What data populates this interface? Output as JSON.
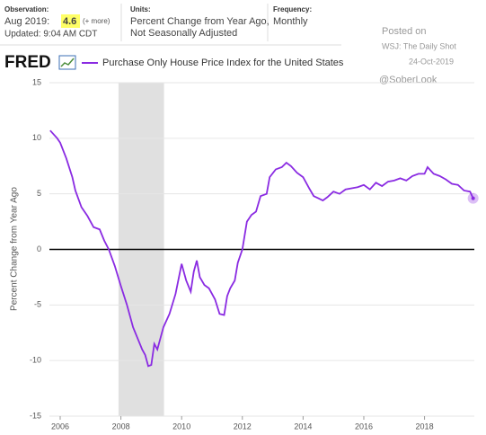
{
  "header": {
    "observation_label": "Observation:",
    "observation_date": "Aug 2019:",
    "observation_value": "4.6",
    "observation_more": "(+ more)",
    "updated": "Updated: 9:04 AM CDT",
    "units_label": "Units:",
    "units_line1": "Percent Change from Year Ago,",
    "units_line2": "Not Seasonally Adjusted",
    "frequency_label": "Frequency:",
    "frequency": "Monthly",
    "logo": "FRED"
  },
  "watermark": {
    "posted": "Posted on",
    "source": "WSJ: The Daily Shot",
    "date": "24-Oct-2019",
    "handle": "@SoberLook"
  },
  "chart_data": {
    "type": "line",
    "ylabel": "Percent Change from Year Ago",
    "x": [
      2005.67,
      2005.9,
      2006.0,
      2006.2,
      2006.4,
      2006.5,
      2006.7,
      2006.9,
      2007.1,
      2007.3,
      2007.45,
      2007.6,
      2007.8,
      2008.0,
      2008.2,
      2008.4,
      2008.55,
      2008.7,
      2008.8,
      2008.9,
      2009.0,
      2009.1,
      2009.2,
      2009.3,
      2009.4,
      2009.6,
      2009.8,
      2010.0,
      2010.15,
      2010.3,
      2010.4,
      2010.5,
      2010.6,
      2010.75,
      2010.9,
      2011.0,
      2011.1,
      2011.25,
      2011.4,
      2011.5,
      2011.6,
      2011.75,
      2011.85,
      2012.0,
      2012.15,
      2012.3,
      2012.45,
      2012.6,
      2012.8,
      2012.9,
      2013.1,
      2013.3,
      2013.45,
      2013.6,
      2013.8,
      2014.0,
      2014.2,
      2014.35,
      2014.5,
      2014.65,
      2014.8,
      2015.0,
      2015.2,
      2015.4,
      2015.6,
      2015.8,
      2016.0,
      2016.2,
      2016.4,
      2016.6,
      2016.8,
      2017.0,
      2017.2,
      2017.4,
      2017.6,
      2017.8,
      2018.0,
      2018.1,
      2018.3,
      2018.5,
      2018.7,
      2018.9,
      2019.1,
      2019.3,
      2019.5,
      2019.6
    ],
    "series": [
      {
        "name": "Purchase Only House Price Index for the United States",
        "color": "#8a2be2",
        "values": [
          10.7,
          10.0,
          9.6,
          8.2,
          6.5,
          5.3,
          3.8,
          3.0,
          2.0,
          1.8,
          0.8,
          0,
          -1.5,
          -3.3,
          -5.0,
          -7.0,
          -8.0,
          -9.0,
          -9.5,
          -10.5,
          -10.4,
          -8.5,
          -9.0,
          -8.0,
          -7.0,
          -5.8,
          -4.0,
          -1.3,
          -2.8,
          -3.8,
          -2.0,
          -1.0,
          -2.5,
          -3.2,
          -3.5,
          -4.0,
          -4.5,
          -5.8,
          -5.9,
          -4.2,
          -3.5,
          -2.8,
          -1.2,
          0.0,
          2.5,
          3.1,
          3.4,
          4.8,
          5.0,
          6.5,
          7.2,
          7.4,
          7.8,
          7.5,
          6.9,
          6.5,
          5.5,
          4.8,
          4.6,
          4.4,
          4.7,
          5.2,
          5.0,
          5.4,
          5.5,
          5.6,
          5.8,
          5.4,
          6.0,
          5.7,
          6.1,
          6.2,
          6.4,
          6.2,
          6.6,
          6.8,
          6.8,
          7.4,
          6.8,
          6.6,
          6.3,
          5.9,
          5.8,
          5.3,
          5.2,
          4.6
        ]
      }
    ],
    "recession": [
      2007.92,
      2009.42
    ],
    "xlim": [
      2005.645,
      2019.64
    ],
    "ylim": [
      -15,
      15
    ],
    "xticks": [
      2006,
      2008,
      2010,
      2012,
      2014,
      2016,
      2018
    ],
    "yticks": [
      -15,
      -10,
      -5,
      0,
      5,
      10,
      15
    ],
    "grid": true
  }
}
